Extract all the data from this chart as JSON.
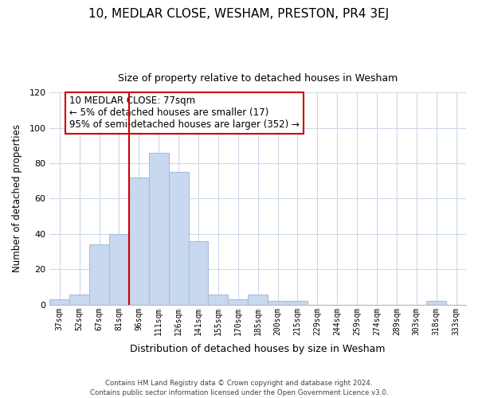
{
  "title": "10, MEDLAR CLOSE, WESHAM, PRESTON, PR4 3EJ",
  "subtitle": "Size of property relative to detached houses in Wesham",
  "xlabel": "Distribution of detached houses by size in Wesham",
  "ylabel": "Number of detached properties",
  "categories": [
    "37sqm",
    "52sqm",
    "67sqm",
    "81sqm",
    "96sqm",
    "111sqm",
    "126sqm",
    "141sqm",
    "155sqm",
    "170sqm",
    "185sqm",
    "200sqm",
    "215sqm",
    "229sqm",
    "244sqm",
    "259sqm",
    "274sqm",
    "289sqm",
    "303sqm",
    "318sqm",
    "333sqm"
  ],
  "values": [
    3,
    6,
    34,
    40,
    72,
    86,
    75,
    36,
    6,
    3,
    6,
    2,
    2,
    0,
    0,
    0,
    0,
    0,
    0,
    2,
    0
  ],
  "bar_color": "#c8d8ee",
  "bar_edge_color": "#a8bedc",
  "vline_x_index": 3,
  "vline_color": "#cc0000",
  "annotation_text": "10 MEDLAR CLOSE: 77sqm\n← 5% of detached houses are smaller (17)\n95% of semi-detached houses are larger (352) →",
  "annotation_box_color": "#ffffff",
  "annotation_box_edge_color": "#cc0000",
  "ylim": [
    0,
    120
  ],
  "yticks": [
    0,
    20,
    40,
    60,
    80,
    100,
    120
  ],
  "footer_line1": "Contains HM Land Registry data © Crown copyright and database right 2024.",
  "footer_line2": "Contains public sector information licensed under the Open Government Licence v3.0.",
  "background_color": "#ffffff",
  "grid_color": "#ccd8e8"
}
